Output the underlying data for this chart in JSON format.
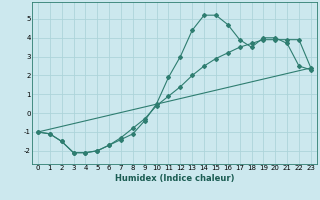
{
  "title": "",
  "xlabel": "Humidex (Indice chaleur)",
  "ylabel": "",
  "background_color": "#cce8ee",
  "grid_color": "#add4da",
  "line_color": "#2e7d70",
  "xlim": [
    -0.5,
    23.5
  ],
  "ylim": [
    -2.7,
    5.9
  ],
  "xticks": [
    0,
    1,
    2,
    3,
    4,
    5,
    6,
    7,
    8,
    9,
    10,
    11,
    12,
    13,
    14,
    15,
    16,
    17,
    18,
    19,
    20,
    21,
    22,
    23
  ],
  "yticks": [
    -2,
    -1,
    0,
    1,
    2,
    3,
    4,
    5
  ],
  "line1_x": [
    0,
    1,
    2,
    3,
    4,
    5,
    6,
    7,
    8,
    9,
    10,
    11,
    12,
    13,
    14,
    15,
    16,
    17,
    18,
    19,
    20,
    21,
    22,
    23
  ],
  "line1_y": [
    -1.0,
    -1.1,
    -1.5,
    -2.1,
    -2.1,
    -2.0,
    -1.7,
    -1.4,
    -1.1,
    -0.4,
    0.5,
    1.9,
    3.0,
    4.4,
    5.2,
    5.2,
    4.7,
    3.9,
    3.5,
    4.0,
    4.0,
    3.7,
    2.5,
    2.3
  ],
  "line2_x": [
    0,
    1,
    2,
    3,
    4,
    5,
    6,
    7,
    8,
    9,
    10,
    11,
    12,
    13,
    14,
    15,
    16,
    17,
    18,
    19,
    20,
    21,
    22,
    23
  ],
  "line2_y": [
    -1.0,
    -1.1,
    -1.5,
    -2.1,
    -2.1,
    -2.0,
    -1.7,
    -1.3,
    -0.8,
    -0.3,
    0.4,
    0.9,
    1.4,
    2.0,
    2.5,
    2.9,
    3.2,
    3.5,
    3.7,
    3.9,
    3.9,
    3.9,
    3.9,
    2.4
  ],
  "line3_x": [
    0,
    23
  ],
  "line3_y": [
    -1.0,
    2.4
  ],
  "marker_style": "D",
  "marker_size": 2,
  "line_width": 0.8,
  "xlabel_fontsize": 6,
  "tick_fontsize": 5
}
